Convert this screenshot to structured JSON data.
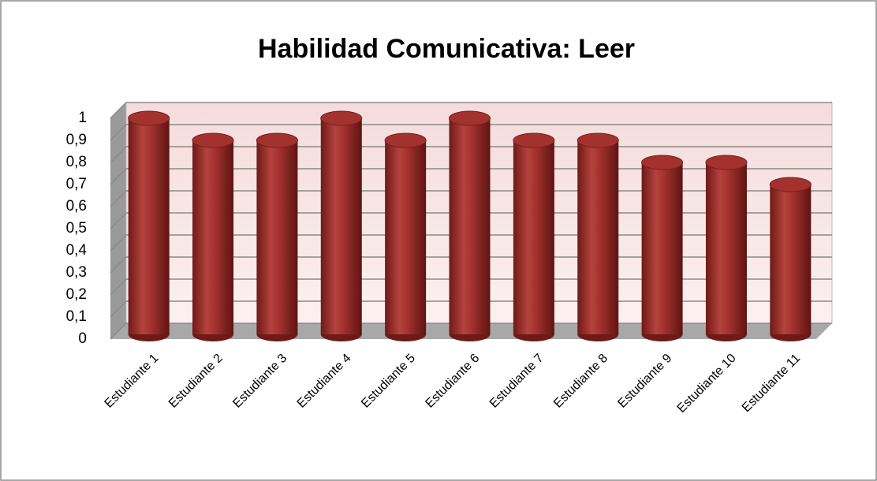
{
  "chart_data": {
    "type": "bar",
    "title": "Habilidad Comunicativa:  Leer",
    "categories": [
      "Estudiante 1",
      "Estudiante 2",
      "Estudiante 3",
      "Estudiante 4",
      "Estudiante 5",
      "Estudiante 6",
      "Estudiante 7",
      "Estudiante 8",
      "Estudiante 9",
      "Estudiante 10",
      "Estudiante 11"
    ],
    "values": [
      1,
      0.9,
      0.9,
      1,
      0.9,
      1,
      0.9,
      0.9,
      0.8,
      0.8,
      0.7
    ],
    "color": "#a3322e",
    "ylim": [
      0,
      1
    ],
    "yticks": [
      0,
      {
        "value": 0.1,
        "label": "0,1"
      },
      {
        "value": 0.2,
        "label": "0,2"
      },
      {
        "value": 0.3,
        "label": "0,3"
      },
      {
        "value": 0.4,
        "label": "0,4"
      },
      {
        "value": 0.5,
        "label": "0,5"
      },
      {
        "value": 0.6,
        "label": "0,6"
      },
      {
        "value": 0.7,
        "label": "0,7"
      },
      {
        "value": 0.8,
        "label": "0,8"
      },
      {
        "value": 0.9,
        "label": "0,9"
      },
      1
    ],
    "grid": true
  }
}
